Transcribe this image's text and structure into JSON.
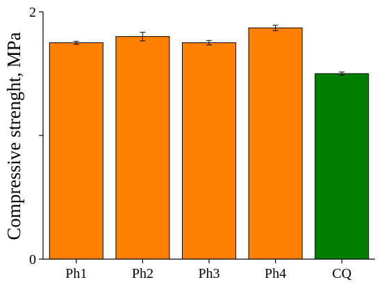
{
  "chart_data": {
    "type": "bar",
    "title": "",
    "xlabel": "",
    "ylabel": "Compressive strenght, MPa",
    "ylim": [
      0,
      2
    ],
    "yticks": [
      0,
      1,
      2
    ],
    "ytick_labels": [
      "0",
      "",
      "2"
    ],
    "categories": [
      "Ph1",
      "Ph2",
      "Ph3",
      "Ph4",
      "CQ"
    ],
    "values": [
      1.75,
      1.8,
      1.75,
      1.87,
      1.5
    ],
    "errors": [
      0.012,
      0.035,
      0.018,
      0.022,
      0.013
    ],
    "colors": [
      "#ff8000",
      "#ff8000",
      "#ff8000",
      "#ff8000",
      "#007f00"
    ],
    "grid": false,
    "legend": "none"
  }
}
